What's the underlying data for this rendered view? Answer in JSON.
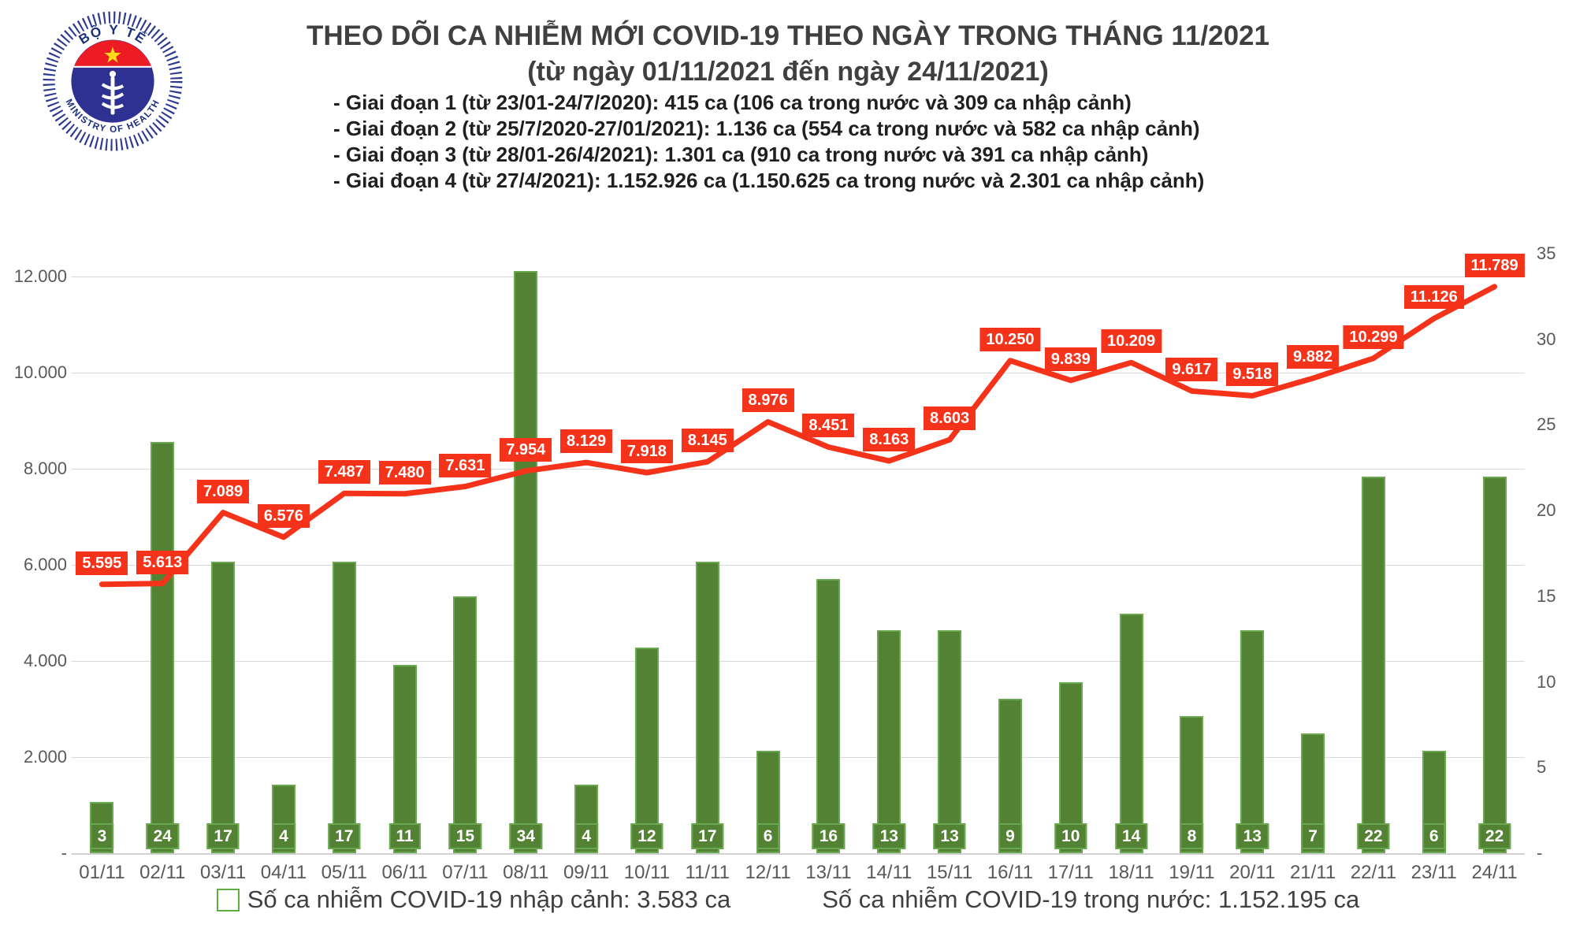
{
  "header": {
    "title_line1": "THEO DÕI CA NHIỄM MỚI COVID-19 THEO NGÀY TRONG THÁNG 11/2021",
    "title_line2": "(từ ngày 01/11/2021 đến ngày 24/11/2021)",
    "bullets": [
      "- Giai đoạn 1 (từ 23/01-24/7/2020): 415 ca (106 ca trong nước và 309 ca nhập cảnh)",
      "- Giai đoạn 2 (từ 25/7/2020-27/01/2021): 1.136 ca (554 ca trong nước và 582 ca nhập cảnh)",
      "- Giai đoạn 3 (từ 28/01-26/4/2021): 1.301 ca (910 ca trong nước và 391 ca nhập cảnh)",
      "- Giai đoạn 4 (từ 27/4/2021): 1.152.926 ca (1.150.625 ca trong nước và 2.301 ca nhập cảnh)"
    ],
    "logo": {
      "top_text": "BỘ Y TẾ",
      "bottom_text": "MINISTRY OF HEALTH"
    }
  },
  "chart_data": {
    "type": "combo bar+line",
    "categories": [
      "01/11",
      "02/11",
      "03/11",
      "04/11",
      "05/11",
      "06/11",
      "07/11",
      "08/11",
      "09/11",
      "10/11",
      "11/11",
      "12/11",
      "13/11",
      "14/11",
      "15/11",
      "16/11",
      "17/11",
      "18/11",
      "19/11",
      "20/11",
      "21/11",
      "22/11",
      "23/11",
      "24/11"
    ],
    "series": [
      {
        "name": "Số ca nhiễm COVID-19 nhập cảnh",
        "chart": "bar",
        "axis": "right",
        "values": [
          3,
          24,
          17,
          4,
          17,
          11,
          15,
          34,
          4,
          12,
          17,
          6,
          16,
          13,
          13,
          9,
          10,
          14,
          8,
          13,
          7,
          22,
          6,
          22
        ]
      },
      {
        "name": "Số ca nhiễm COVID-19 trong nước",
        "chart": "line",
        "axis": "left",
        "values": [
          5595,
          5613,
          7089,
          6576,
          7487,
          7480,
          7631,
          7954,
          8129,
          7918,
          8145,
          8976,
          8451,
          8163,
          8603,
          10250,
          9839,
          10209,
          9617,
          9518,
          9882,
          10299,
          11126,
          11789
        ],
        "labels": [
          "5.595",
          "5.613",
          "7.089",
          "6.576",
          "7.487",
          "7.480",
          "7.631",
          "7.954",
          "8.129",
          "7.918",
          "8.145",
          "8.976",
          "8.451",
          "8.163",
          "8.603",
          "10.250",
          "9.839",
          "10.209",
          "9.617",
          "9.518",
          "9.882",
          "10.299",
          "11.126",
          "11.789"
        ]
      }
    ],
    "left_axis": {
      "tick_labels": [
        "12.000",
        "10.000",
        "8.000",
        "6.000",
        "4.000",
        "2.000",
        "-"
      ],
      "tick_values": [
        12000,
        10000,
        8000,
        6000,
        4000,
        2000,
        0
      ],
      "min": 0,
      "grid_max": 12000
    },
    "right_axis": {
      "tick_labels": [
        "35",
        "30",
        "25",
        "20",
        "15",
        "10",
        "5",
        "-"
      ],
      "tick_values": [
        35,
        30,
        25,
        20,
        15,
        10,
        5,
        0
      ],
      "min": 0,
      "max": 35
    },
    "grid": "horizontal gridlines at left-axis major ticks",
    "legend_position": "bottom"
  },
  "legend": {
    "bar_label": "Số ca nhiễm COVID-19 nhập cảnh: 3.583 ca",
    "line_label": "Số ca nhiễm COVID-19 trong nước: 1.152.195 ca"
  },
  "colors": {
    "bar_fill": "#548235",
    "bar_border": "#6aa84f",
    "line_red": "#f5331a",
    "label_red_bg": "#f5331a",
    "grid": "#d9d9d9",
    "axis_text": "#595959",
    "title_text": "#3f3f3f",
    "logo_blue": "#2b3990",
    "logo_red": "#ed1c24",
    "logo_star_yellow": "#ffde17"
  }
}
